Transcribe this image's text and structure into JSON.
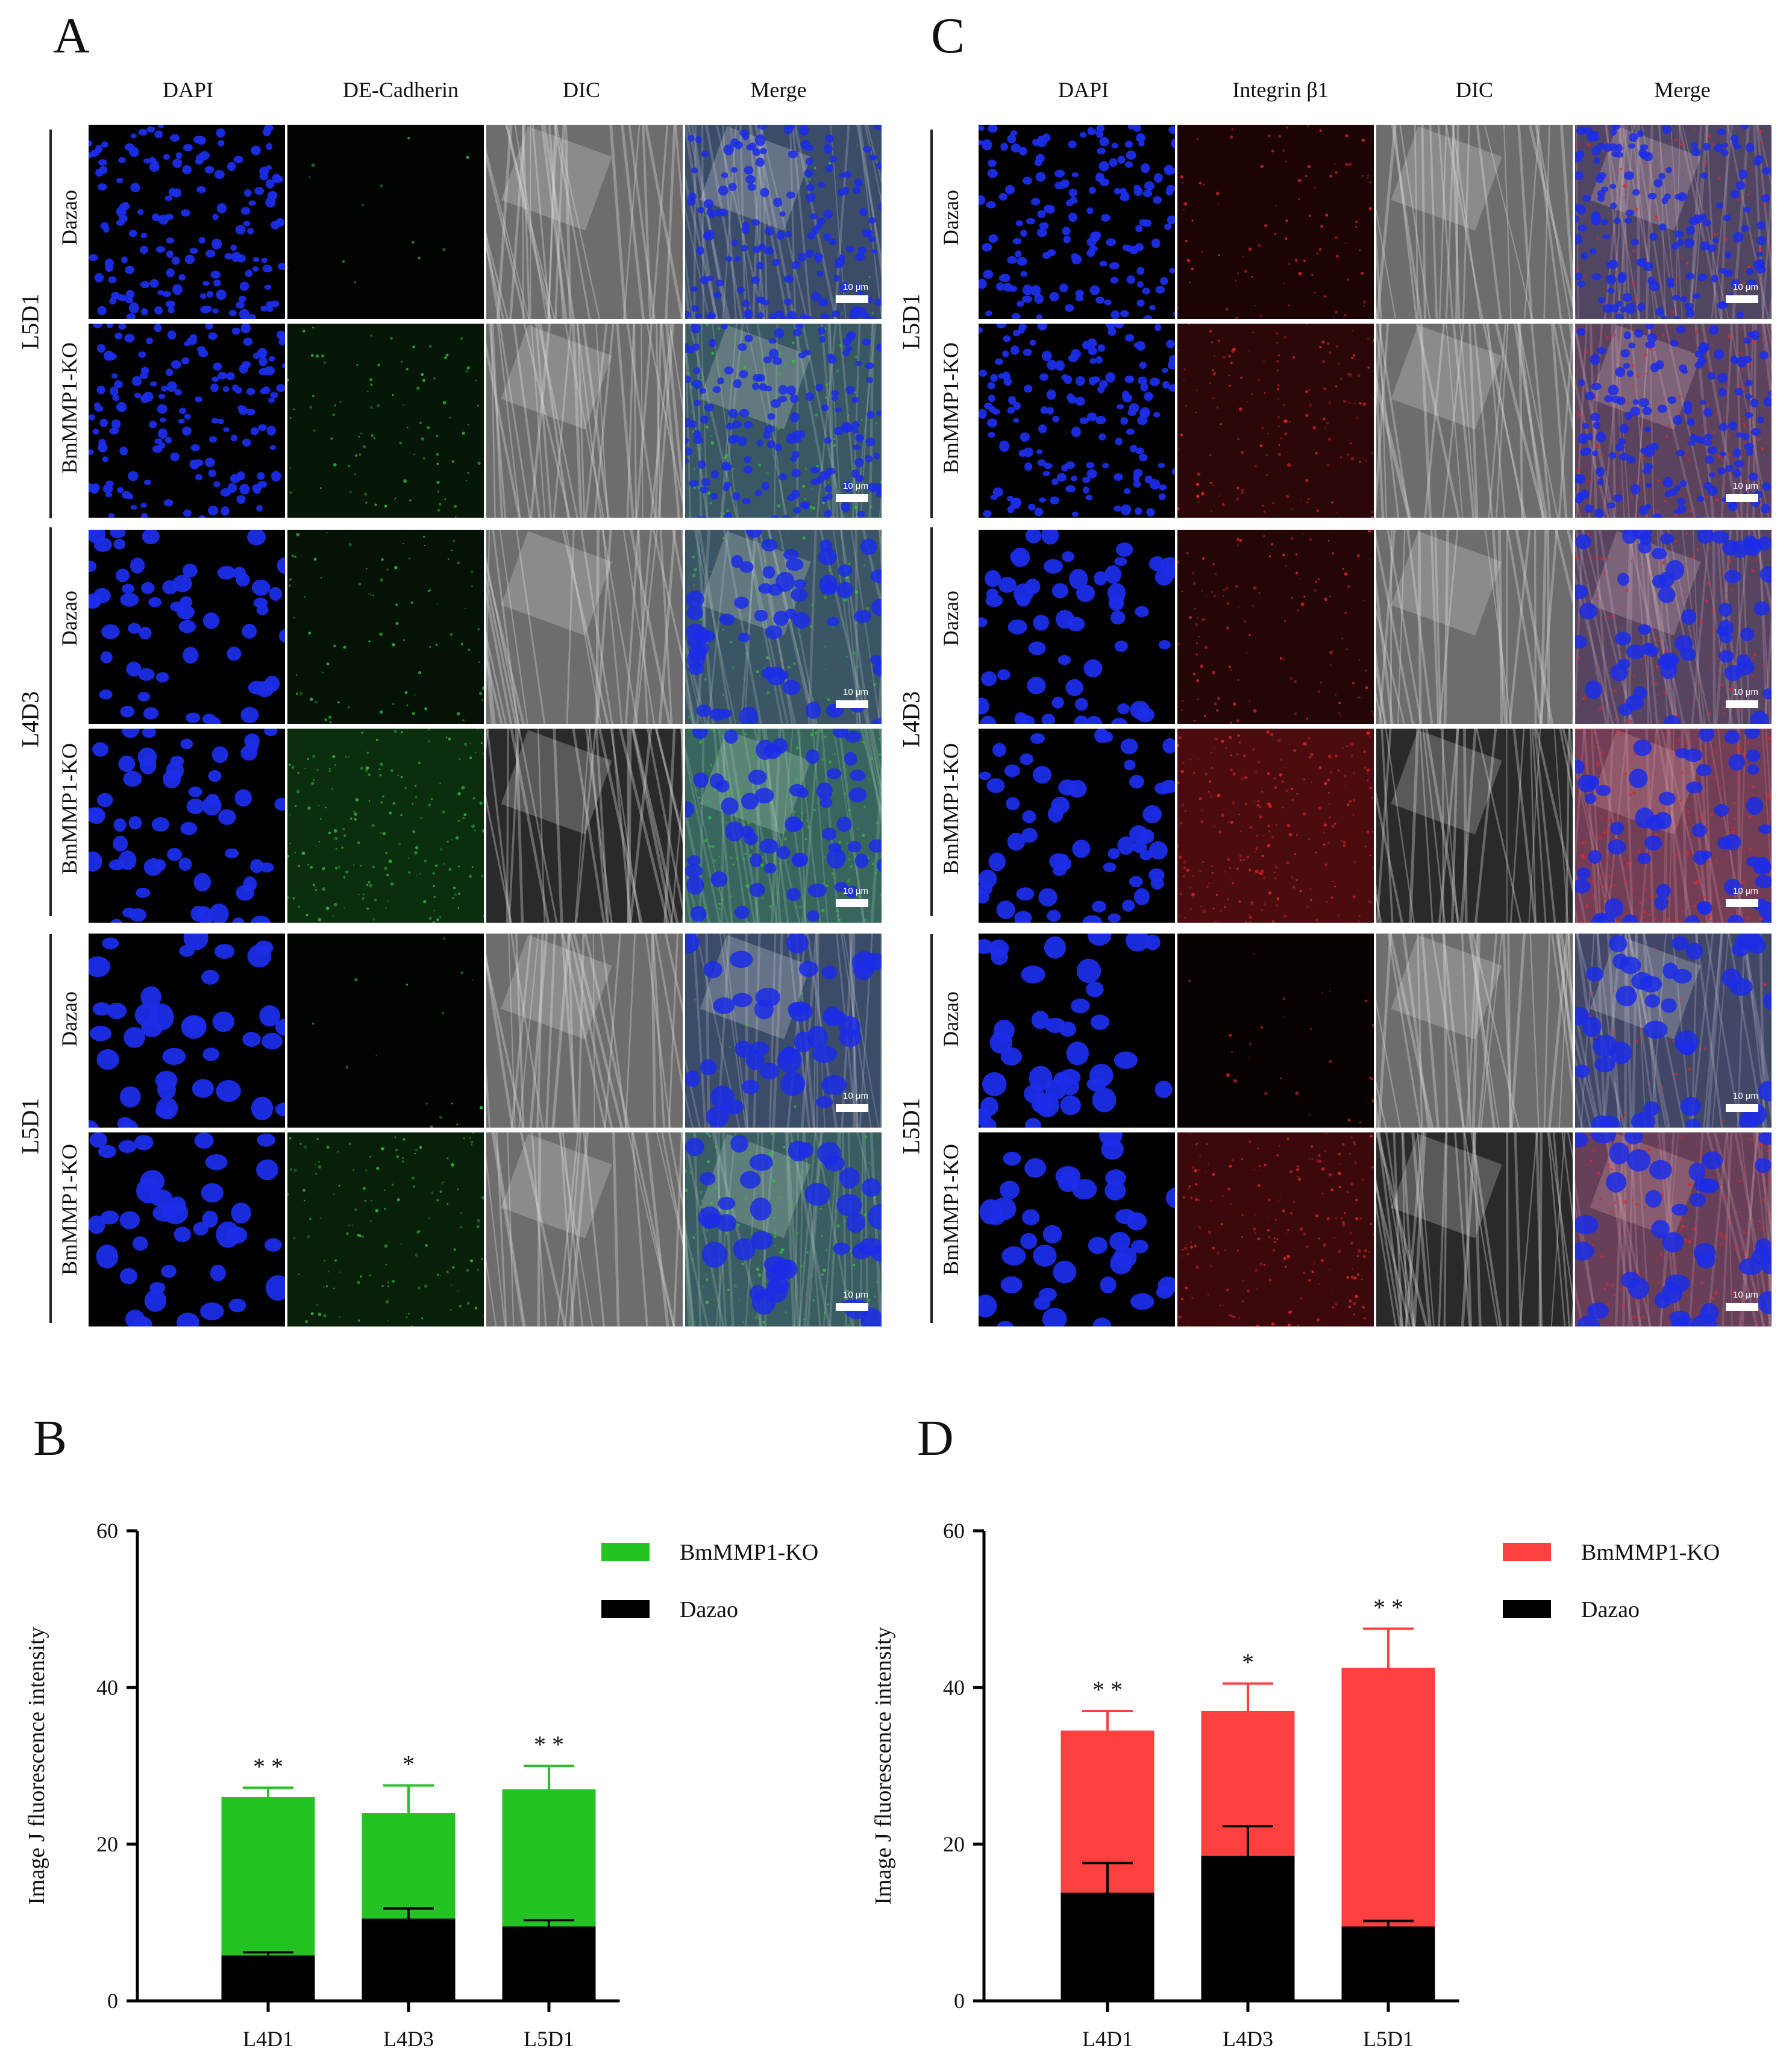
{
  "panels": {
    "A": {
      "letter": "A",
      "columns": [
        "DAPI",
        "DE-Cadherin",
        "DIC",
        "Merge"
      ],
      "stain_color": "#2fbf3a",
      "groups": [
        {
          "label": "L5D1",
          "rows": [
            {
              "label": "Dazao",
              "signal": 0.05
            },
            {
              "label": "BmMMP1-KO",
              "signal": 0.35
            }
          ],
          "density": "small"
        },
        {
          "label": "L4D3",
          "rows": [
            {
              "label": "Dazao",
              "signal": 0.3
            },
            {
              "label": "BmMMP1-KO",
              "signal": 0.7
            }
          ],
          "density": "medium"
        },
        {
          "label": "L5D1",
          "rows": [
            {
              "label": "Dazao",
              "signal": 0.06
            },
            {
              "label": "BmMMP1-KO",
              "signal": 0.5
            }
          ],
          "density": "large"
        }
      ],
      "scale_label": "10 μm"
    },
    "C": {
      "letter": "C",
      "columns": [
        "DAPI",
        "Integrin β1",
        "DIC",
        "Merge"
      ],
      "stain_color": "#e5242a",
      "groups": [
        {
          "label": "L5D1",
          "rows": [
            {
              "label": "Dazao",
              "signal": 0.35
            },
            {
              "label": "BmMMP1-KO",
              "signal": 0.55
            }
          ],
          "density": "small"
        },
        {
          "label": "L4D3",
          "rows": [
            {
              "label": "Dazao",
              "signal": 0.45
            },
            {
              "label": "BmMMP1-KO",
              "signal": 0.9
            }
          ],
          "density": "medium"
        },
        {
          "label": "L5D1",
          "rows": [
            {
              "label": "Dazao",
              "signal": 0.1
            },
            {
              "label": "BmMMP1-KO",
              "signal": 0.75
            }
          ],
          "density": "large"
        }
      ],
      "scale_label": "10 μm"
    },
    "B": {
      "letter": "B"
    },
    "D": {
      "letter": "D"
    }
  },
  "colors": {
    "dapi": "#1b2de8",
    "background": "#000000",
    "ko_green": "#22c322",
    "ko_red": "#fc4040",
    "dazao": "#000000"
  },
  "chart_data": [
    {
      "id": "B",
      "type": "bar",
      "stacked": true,
      "categories": [
        "L4D1",
        "L4D3",
        "L5D1"
      ],
      "series": [
        {
          "name": "BmMMP1-KO",
          "values": [
            26,
            24,
            27
          ],
          "errors": [
            1.2,
            3.5,
            3
          ],
          "color": "#22c322"
        },
        {
          "name": "Dazao",
          "values": [
            5.8,
            10.5,
            9.5
          ],
          "errors": [
            0.4,
            1.3,
            0.8
          ],
          "color": "#000000"
        }
      ],
      "significance": [
        "* *",
        "*",
        "* *"
      ],
      "ylabel": "Image J fluorescence intensity",
      "xlabel": "",
      "ylim": [
        0,
        60
      ],
      "yticks": [
        0,
        20,
        40,
        60
      ],
      "legend": "top-right"
    },
    {
      "id": "D",
      "type": "bar",
      "stacked": true,
      "categories": [
        "L4D1",
        "L4D3",
        "L5D1"
      ],
      "series": [
        {
          "name": "BmMMP1-KO",
          "values": [
            34.5,
            37,
            42.5
          ],
          "errors": [
            2.5,
            3.5,
            5
          ],
          "color": "#fc4040"
        },
        {
          "name": "Dazao",
          "values": [
            13.8,
            18.5,
            9.5
          ],
          "errors": [
            3.8,
            3.8,
            0.7
          ],
          "color": "#000000"
        }
      ],
      "significance": [
        "* *",
        "*",
        "* *"
      ],
      "ylabel": "Image J fluorescence intensity",
      "xlabel": "",
      "ylim": [
        0,
        60
      ],
      "yticks": [
        0,
        20,
        40,
        60
      ],
      "legend": "top-right"
    }
  ]
}
